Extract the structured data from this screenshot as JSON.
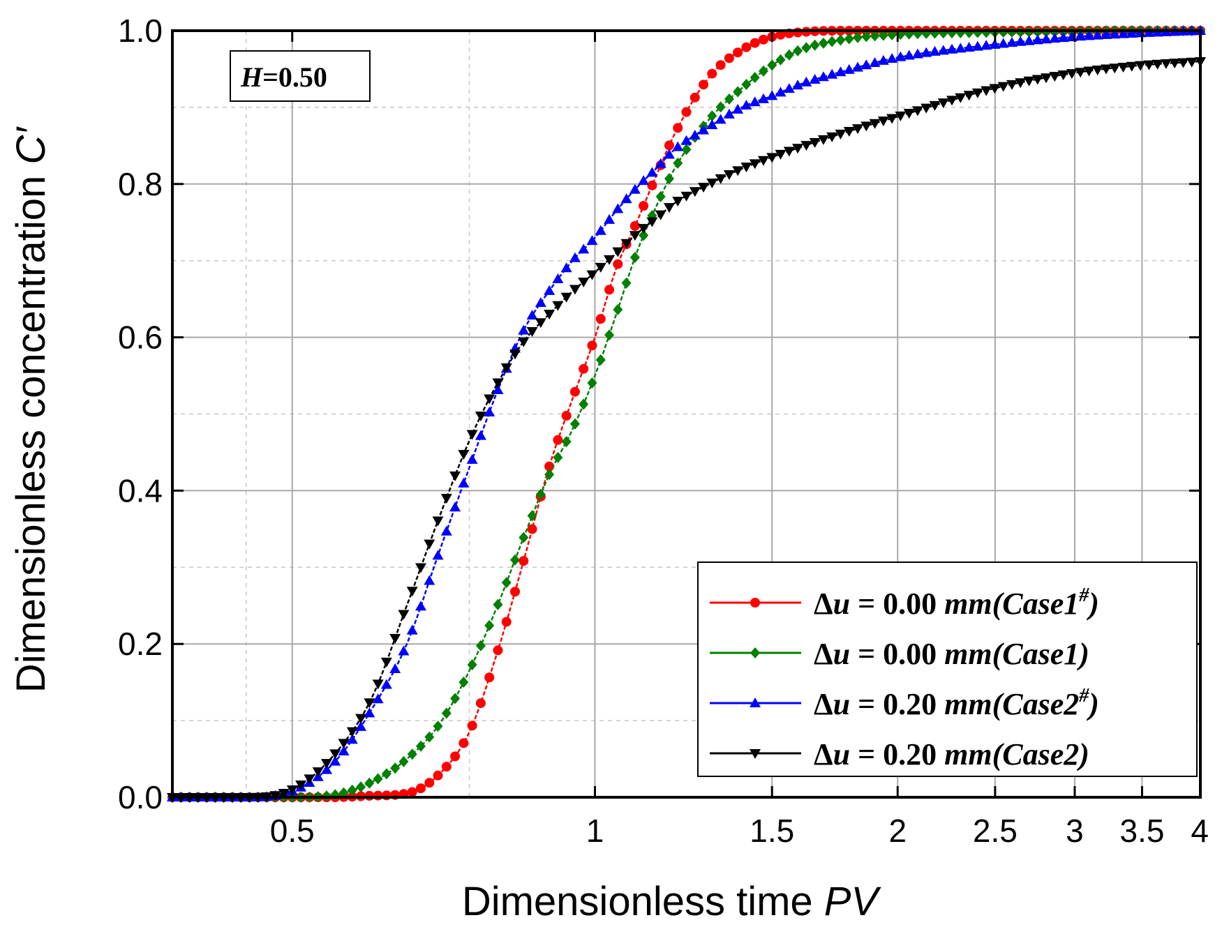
{
  "chart_data": {
    "type": "line",
    "title": "",
    "xlabel": "Dimensionless time",
    "xlabel_var": "PV",
    "ylabel": "Dimensionless concentration",
    "ylabel_var": "C′",
    "xscale": "log",
    "xlim": [
      0.38,
      4.0
    ],
    "ylim": [
      0.0,
      1.0
    ],
    "xticks": [
      {
        "value": 0.5,
        "label": "0.5"
      },
      {
        "value": 1,
        "label": "1"
      },
      {
        "value": 1.5,
        "label": "1.5"
      },
      {
        "value": 2,
        "label": "2"
      },
      {
        "value": 2.5,
        "label": "2.5"
      },
      {
        "value": 3,
        "label": "3"
      },
      {
        "value": 3.5,
        "label": "3.5"
      },
      {
        "value": 4,
        "label": "4"
      }
    ],
    "yticks": [
      {
        "value": 0.0,
        "label": "0.0"
      },
      {
        "value": 0.2,
        "label": "0.2"
      },
      {
        "value": 0.4,
        "label": "0.4"
      },
      {
        "value": 0.6,
        "label": "0.6"
      },
      {
        "value": 0.8,
        "label": "0.8"
      },
      {
        "value": 1.0,
        "label": "1.0"
      }
    ],
    "grid": true,
    "annotation": {
      "var": "H",
      "value": "=0.50"
    },
    "legend_position": "bottom-right",
    "series": [
      {
        "name": "Δu = 0.00 mm(Case1#)",
        "legend": {
          "delta": "Δ",
          "var": "u",
          "value": " = 0.00 ",
          "unit": "mm(Case1",
          "sup": "#",
          "close": ")"
        },
        "color": "#ff0000",
        "marker": "circle",
        "x": [
          0.38,
          0.45,
          0.5,
          0.55,
          0.6,
          0.65,
          0.7,
          0.75,
          0.8,
          0.85,
          0.9,
          0.95,
          1.0,
          1.05,
          1.1,
          1.15,
          1.2,
          1.3,
          1.4,
          1.5,
          1.6,
          1.8,
          2.0,
          2.5,
          3.0,
          3.5,
          4.0
        ],
        "y": [
          0.0,
          0.0,
          0.0,
          0.0,
          0.002,
          0.005,
          0.03,
          0.085,
          0.19,
          0.31,
          0.43,
          0.52,
          0.6,
          0.69,
          0.75,
          0.81,
          0.865,
          0.94,
          0.975,
          0.992,
          0.998,
          1.0,
          1.0,
          1.0,
          1.0,
          1.0,
          1.0
        ]
      },
      {
        "name": "Δu = 0.00 mm(Case1)",
        "legend": {
          "delta": "Δ",
          "var": "u",
          "value": " = 0.00 ",
          "unit": "mm(Case1",
          "sup": "",
          "close": ")"
        },
        "color": "#008000",
        "marker": "diamond",
        "x": [
          0.38,
          0.45,
          0.5,
          0.55,
          0.6,
          0.65,
          0.7,
          0.75,
          0.8,
          0.85,
          0.9,
          0.95,
          1.0,
          1.05,
          1.1,
          1.15,
          1.2,
          1.3,
          1.4,
          1.5,
          1.6,
          1.8,
          2.0,
          2.5,
          3.0,
          3.5,
          4.0
        ],
        "y": [
          0.0,
          0.0,
          0.0,
          0.003,
          0.02,
          0.05,
          0.095,
          0.165,
          0.25,
          0.34,
          0.42,
          0.48,
          0.55,
          0.63,
          0.71,
          0.77,
          0.82,
          0.885,
          0.925,
          0.955,
          0.975,
          0.99,
          0.995,
          0.998,
          0.999,
          1.0,
          1.0
        ]
      },
      {
        "name": "Δu = 0.20 mm(Case2#)",
        "legend": {
          "delta": "Δ",
          "var": "u",
          "value": " = 0.20 ",
          "unit": "mm(Case2",
          "sup": "#",
          "close": ")"
        },
        "color": "#0000ff",
        "marker": "triangle-up",
        "x": [
          0.38,
          0.45,
          0.5,
          0.55,
          0.6,
          0.65,
          0.7,
          0.75,
          0.8,
          0.85,
          0.9,
          0.95,
          1.0,
          1.05,
          1.1,
          1.15,
          1.2,
          1.3,
          1.4,
          1.5,
          1.6,
          1.8,
          2.0,
          2.5,
          3.0,
          3.5,
          4.0
        ],
        "y": [
          0.0,
          0.0,
          0.008,
          0.045,
          0.115,
          0.2,
          0.32,
          0.43,
          0.53,
          0.61,
          0.66,
          0.7,
          0.73,
          0.765,
          0.795,
          0.82,
          0.845,
          0.875,
          0.9,
          0.915,
          0.93,
          0.95,
          0.965,
          0.982,
          0.992,
          0.997,
          1.0
        ]
      },
      {
        "name": "Δu = 0.20 mm(Case2)",
        "legend": {
          "delta": "Δ",
          "var": "u",
          "value": " = 0.20 ",
          "unit": "mm(Case2",
          "sup": "",
          "close": ")"
        },
        "color": "#000000",
        "marker": "triangle-down",
        "x": [
          0.38,
          0.45,
          0.5,
          0.55,
          0.6,
          0.65,
          0.7,
          0.75,
          0.8,
          0.85,
          0.9,
          0.95,
          1.0,
          1.05,
          1.1,
          1.15,
          1.2,
          1.3,
          1.4,
          1.5,
          1.6,
          1.8,
          2.0,
          2.5,
          3.0,
          3.5,
          4.0
        ],
        "y": [
          0.0,
          0.0,
          0.01,
          0.055,
          0.13,
          0.25,
          0.365,
          0.465,
          0.54,
          0.595,
          0.63,
          0.66,
          0.685,
          0.71,
          0.735,
          0.755,
          0.775,
          0.8,
          0.82,
          0.835,
          0.848,
          0.87,
          0.888,
          0.925,
          0.945,
          0.955,
          0.96
        ]
      }
    ]
  }
}
